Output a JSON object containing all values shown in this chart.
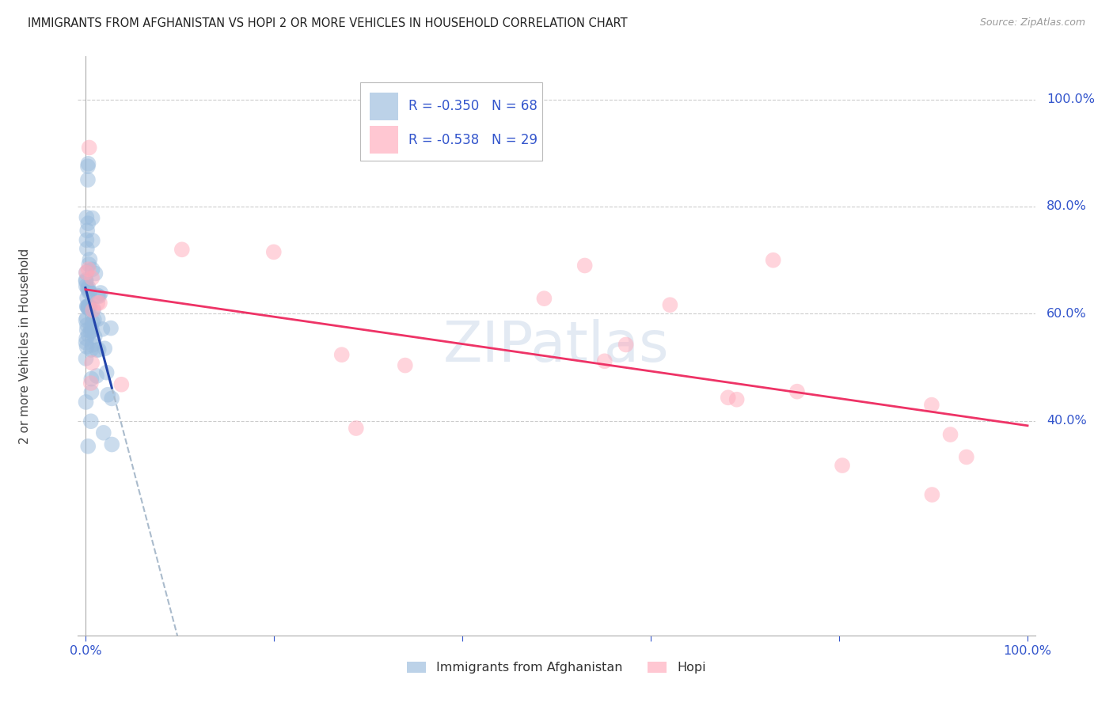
{
  "title": "IMMIGRANTS FROM AFGHANISTAN VS HOPI 2 OR MORE VEHICLES IN HOUSEHOLD CORRELATION CHART",
  "source": "Source: ZipAtlas.com",
  "ylabel": "2 or more Vehicles in Household",
  "ytick_labels": [
    "40.0%",
    "60.0%",
    "80.0%",
    "100.0%"
  ],
  "ytick_values": [
    0.4,
    0.6,
    0.8,
    1.0
  ],
  "legend1_text": "R = -0.350   N = 68",
  "legend2_text": "R = -0.538   N = 29",
  "color_blue": "#99BBDD",
  "color_pink": "#FFAABB",
  "color_blue_line": "#2244AA",
  "color_pink_line": "#EE3366",
  "color_dashed": "#AABBCC",
  "legend_text_color": "#3355CC",
  "blue_seed": 42,
  "pink_seed": 7,
  "background": "#FFFFFF"
}
